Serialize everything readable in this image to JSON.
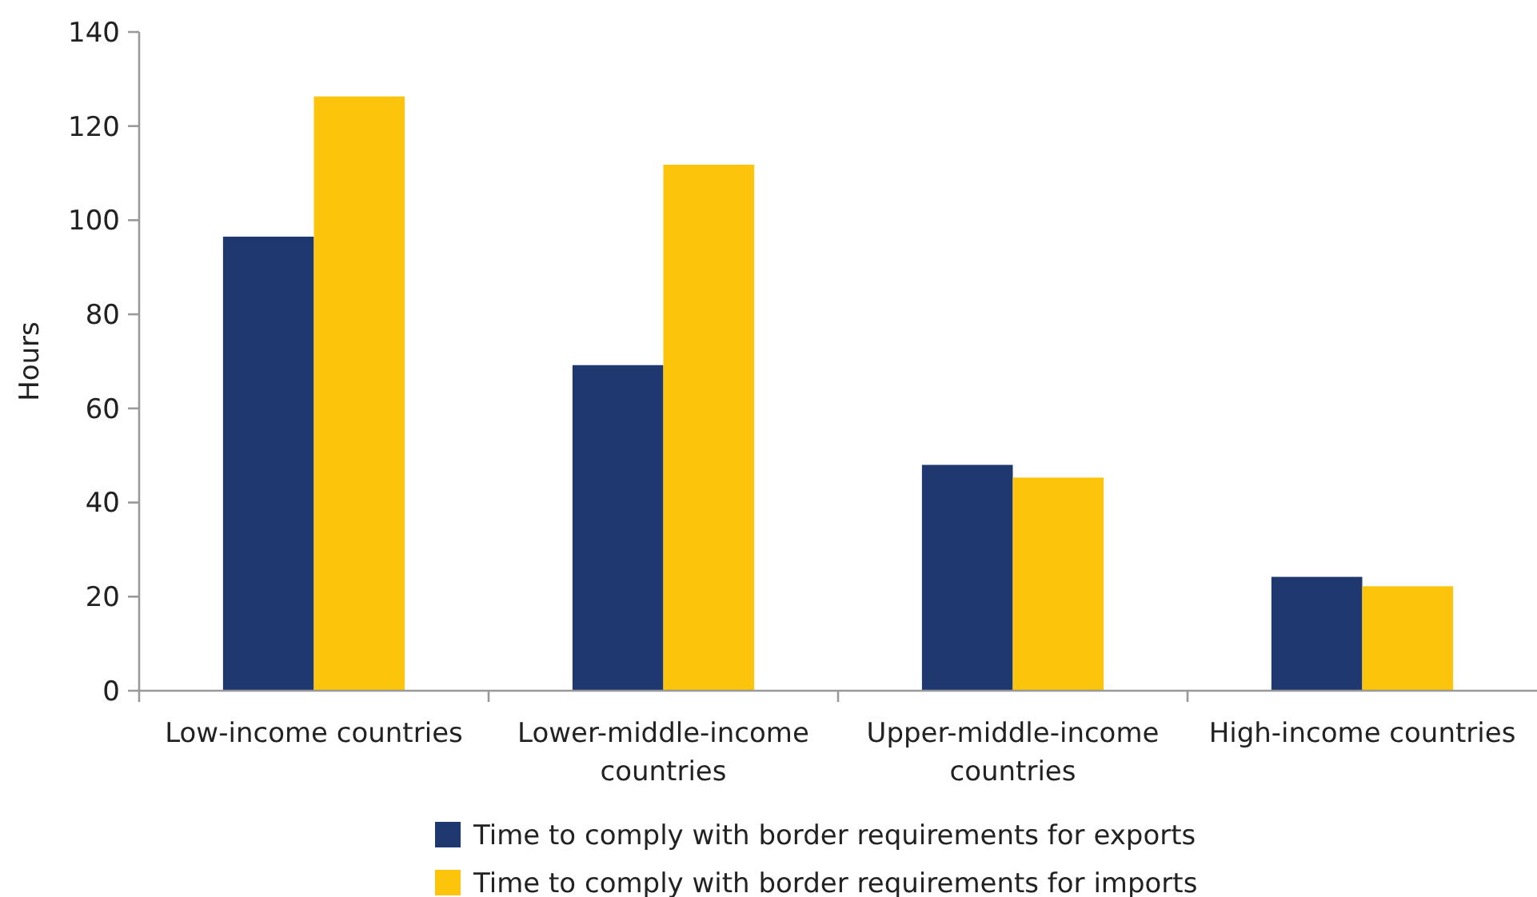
{
  "chart_data": {
    "type": "bar",
    "ylabel": "Hours",
    "categories": [
      "Low-income countries",
      "Lower-middle-income countries",
      "Upper-middle-income countries",
      "High-income countries"
    ],
    "series": [
      {
        "name": "Time to comply with border requirements for exports",
        "color": "#1f3870",
        "values": [
          96.5,
          69.2,
          48.0,
          24.2
        ]
      },
      {
        "name": "Time to comply with border requirements for imports",
        "color": "#fdc40c",
        "values": [
          126.3,
          111.8,
          45.3,
          22.2
        ]
      }
    ],
    "ylim": [
      0,
      140
    ],
    "yticks": [
      0,
      20,
      40,
      60,
      80,
      100,
      120,
      140
    ],
    "grid": false,
    "legend": "bottom"
  }
}
